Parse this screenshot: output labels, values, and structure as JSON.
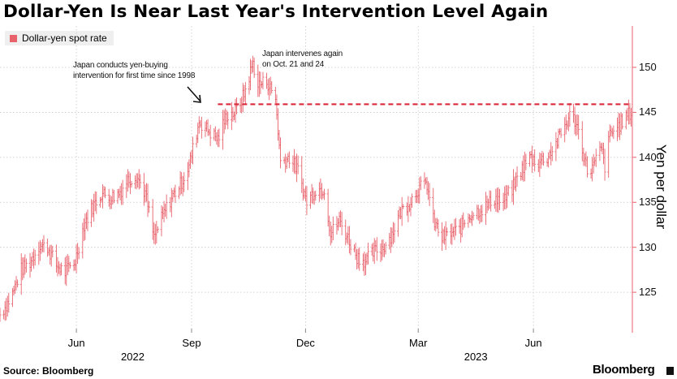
{
  "title": "Dollar-Yen Is Near Last Year's Intervention Level Again",
  "legend": {
    "label": "Dollar-yen spot rate",
    "color": "#e8626c"
  },
  "annotations": [
    {
      "lines": [
        "Japan conducts yen-buying",
        "intervention for first time since 1998"
      ]
    },
    {
      "lines": [
        "Japan intervenes again",
        "on Oct. 21 and 24"
      ]
    }
  ],
  "source": "Source: Bloomberg",
  "brand": "Bloomberg",
  "chart_data": {
    "type": "line",
    "series_name": "Dollar-yen spot rate",
    "ylabel": "Yen per dollar",
    "ylim": [
      120.5,
      154.6
    ],
    "yticks": [
      125,
      130,
      135,
      140,
      145,
      150
    ],
    "xlim": [
      "2022-04-01",
      "2023-08-19"
    ],
    "xticks": [
      {
        "label": "Jun",
        "date": "2022-06-01"
      },
      {
        "label": "Sep",
        "date": "2022-09-01"
      },
      {
        "label": "Dec",
        "date": "2022-12-01"
      },
      {
        "label": "Mar",
        "date": "2023-03-01"
      },
      {
        "label": "Jun",
        "date": "2023-06-01"
      }
    ],
    "years": [
      {
        "label": "2022",
        "date": "2022-07-16"
      },
      {
        "label": "2023",
        "date": "2023-04-16"
      }
    ],
    "reference_line": {
      "value": 145.9,
      "from": "2022-09-22",
      "style": "dashed"
    },
    "series": [
      {
        "date": "2022-04-01",
        "value": 122.5
      },
      {
        "date": "2022-04-10",
        "value": 124.5
      },
      {
        "date": "2022-04-18",
        "value": 127.5
      },
      {
        "date": "2022-04-25",
        "value": 128.3
      },
      {
        "date": "2022-05-02",
        "value": 130.2
      },
      {
        "date": "2022-05-09",
        "value": 130.0
      },
      {
        "date": "2022-05-16",
        "value": 128.0
      },
      {
        "date": "2022-05-23",
        "value": 127.2
      },
      {
        "date": "2022-05-31",
        "value": 128.5
      },
      {
        "date": "2022-06-07",
        "value": 132.5
      },
      {
        "date": "2022-06-14",
        "value": 134.5
      },
      {
        "date": "2022-06-21",
        "value": 136.0
      },
      {
        "date": "2022-06-28",
        "value": 135.5
      },
      {
        "date": "2022-07-05",
        "value": 136.0
      },
      {
        "date": "2022-07-12",
        "value": 137.5
      },
      {
        "date": "2022-07-19",
        "value": 138.0
      },
      {
        "date": "2022-07-26",
        "value": 136.0
      },
      {
        "date": "2022-08-02",
        "value": 131.0
      },
      {
        "date": "2022-08-09",
        "value": 133.5
      },
      {
        "date": "2022-08-16",
        "value": 135.5
      },
      {
        "date": "2022-08-23",
        "value": 137.0
      },
      {
        "date": "2022-08-30",
        "value": 139.0
      },
      {
        "date": "2022-09-07",
        "value": 144.0
      },
      {
        "date": "2022-09-14",
        "value": 143.0
      },
      {
        "date": "2022-09-22",
        "value": 142.0
      },
      {
        "date": "2022-09-29",
        "value": 144.7
      },
      {
        "date": "2022-10-06",
        "value": 145.0
      },
      {
        "date": "2022-10-13",
        "value": 147.0
      },
      {
        "date": "2022-10-20",
        "value": 150.5
      },
      {
        "date": "2022-10-24",
        "value": 148.0
      },
      {
        "date": "2022-10-31",
        "value": 148.5
      },
      {
        "date": "2022-11-07",
        "value": 146.5
      },
      {
        "date": "2022-11-11",
        "value": 139.5
      },
      {
        "date": "2022-11-18",
        "value": 140.0
      },
      {
        "date": "2022-11-25",
        "value": 138.5
      },
      {
        "date": "2022-12-02",
        "value": 135.0
      },
      {
        "date": "2022-12-09",
        "value": 136.5
      },
      {
        "date": "2022-12-16",
        "value": 136.5
      },
      {
        "date": "2022-12-21",
        "value": 131.5
      },
      {
        "date": "2022-12-28",
        "value": 133.0
      },
      {
        "date": "2023-01-04",
        "value": 131.0
      },
      {
        "date": "2023-01-11",
        "value": 129.0
      },
      {
        "date": "2023-01-18",
        "value": 128.5
      },
      {
        "date": "2023-01-25",
        "value": 129.5
      },
      {
        "date": "2023-02-01",
        "value": 130.0
      },
      {
        "date": "2023-02-08",
        "value": 131.5
      },
      {
        "date": "2023-02-15",
        "value": 134.0
      },
      {
        "date": "2023-02-22",
        "value": 135.0
      },
      {
        "date": "2023-03-01",
        "value": 136.5
      },
      {
        "date": "2023-03-08",
        "value": 137.0
      },
      {
        "date": "2023-03-13",
        "value": 133.0
      },
      {
        "date": "2023-03-20",
        "value": 131.0
      },
      {
        "date": "2023-03-27",
        "value": 131.5
      },
      {
        "date": "2023-04-03",
        "value": 132.0
      },
      {
        "date": "2023-04-10",
        "value": 133.5
      },
      {
        "date": "2023-04-17",
        "value": 134.0
      },
      {
        "date": "2023-04-24",
        "value": 134.5
      },
      {
        "date": "2023-05-01",
        "value": 135.5
      },
      {
        "date": "2023-05-08",
        "value": 135.0
      },
      {
        "date": "2023-05-15",
        "value": 136.5
      },
      {
        "date": "2023-05-22",
        "value": 138.5
      },
      {
        "date": "2023-05-29",
        "value": 140.0
      },
      {
        "date": "2023-06-05",
        "value": 139.5
      },
      {
        "date": "2023-06-12",
        "value": 140.0
      },
      {
        "date": "2023-06-19",
        "value": 141.5
      },
      {
        "date": "2023-06-26",
        "value": 143.5
      },
      {
        "date": "2023-06-30",
        "value": 144.6
      },
      {
        "date": "2023-07-05",
        "value": 144.0
      },
      {
        "date": "2023-07-10",
        "value": 141.0
      },
      {
        "date": "2023-07-14",
        "value": 138.5
      },
      {
        "date": "2023-07-19",
        "value": 139.0
      },
      {
        "date": "2023-07-25",
        "value": 141.0
      },
      {
        "date": "2023-07-28",
        "value": 139.0
      },
      {
        "date": "2023-08-01",
        "value": 142.5
      },
      {
        "date": "2023-08-08",
        "value": 143.5
      },
      {
        "date": "2023-08-14",
        "value": 144.5
      },
      {
        "date": "2023-08-18",
        "value": 145.0
      }
    ]
  }
}
